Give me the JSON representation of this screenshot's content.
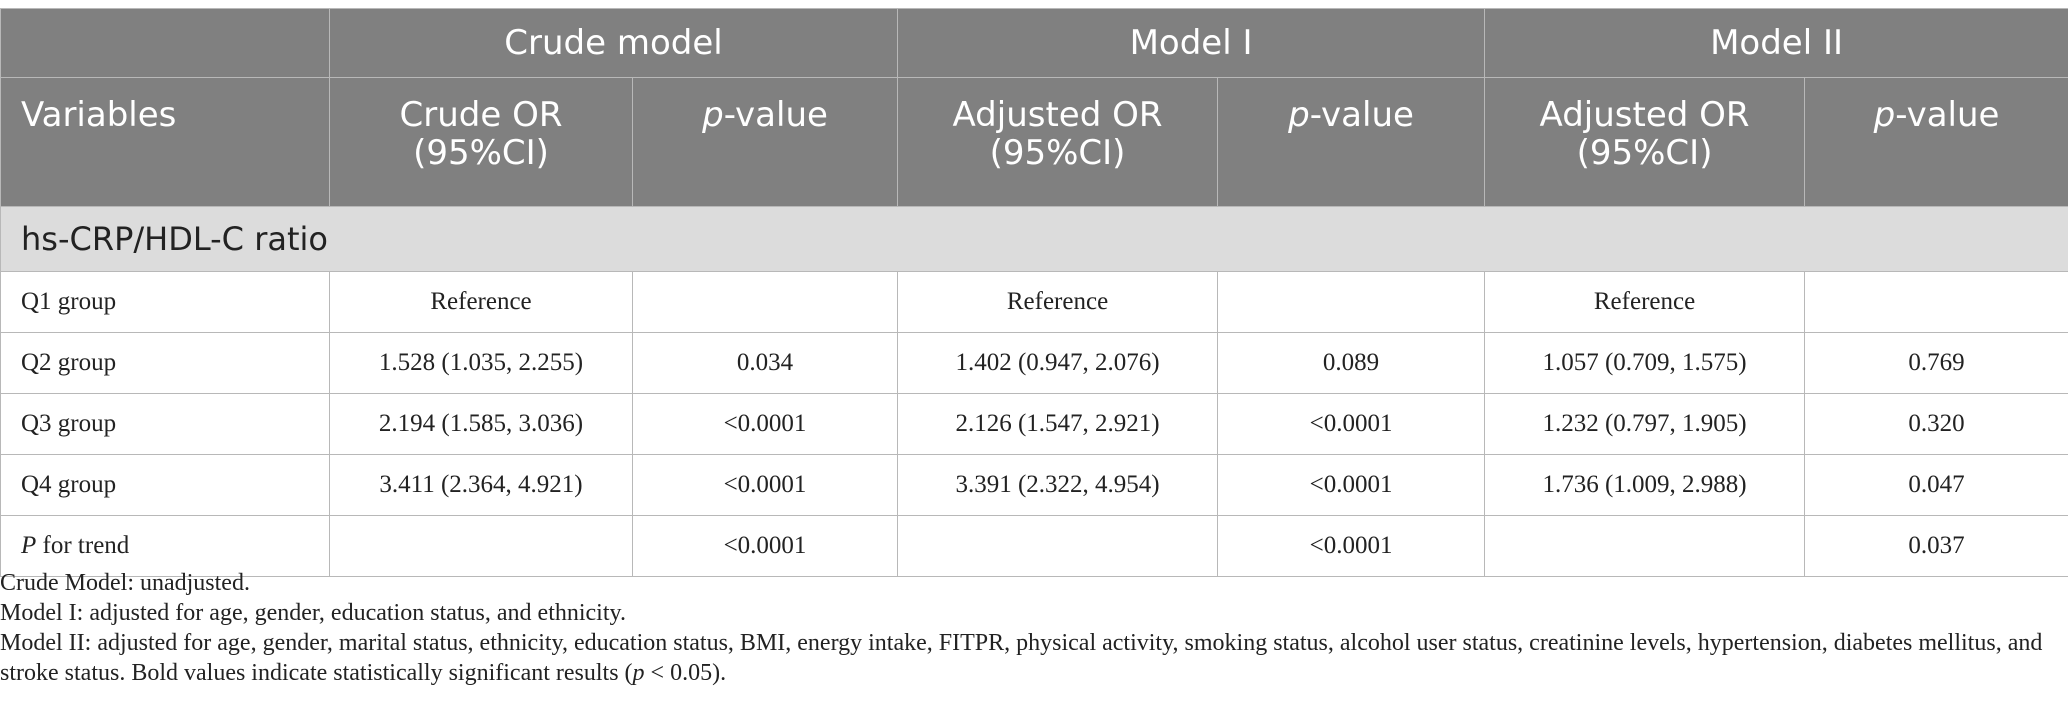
{
  "header": {
    "groups": [
      "Crude model",
      "Model I",
      "Model II"
    ],
    "variables_label": "Variables",
    "or_labels": [
      "Crude OR\n(95%CI)",
      "Adjusted OR\n(95%CI)",
      "Adjusted OR\n(95%CI)"
    ],
    "p_prefix": "p",
    "p_suffix": "-value"
  },
  "section": {
    "title": "hs-CRP/HDL-C ratio"
  },
  "rows": [
    {
      "label": "Q1 group",
      "crude_or": "Reference",
      "crude_p": "",
      "m1_or": "Reference",
      "m1_p": "",
      "m2_or": "Reference",
      "m2_p": ""
    },
    {
      "label": "Q2 group",
      "crude_or": "1.528 (1.035, 2.255)",
      "crude_p": "0.034",
      "m1_or": "1.402 (0.947, 2.076)",
      "m1_p": "0.089",
      "m2_or": "1.057 (0.709, 1.575)",
      "m2_p": "0.769"
    },
    {
      "label": "Q3 group",
      "crude_or": "2.194 (1.585, 3.036)",
      "crude_p": "<0.0001",
      "m1_or": "2.126 (1.547, 2.921)",
      "m1_p": "<0.0001",
      "m2_or": "1.232 (0.797, 1.905)",
      "m2_p": "0.320"
    },
    {
      "label": "Q4 group",
      "crude_or": "3.411 (2.364, 4.921)",
      "crude_p": "<0.0001",
      "m1_or": "3.391 (2.322, 4.954)",
      "m1_p": "<0.0001",
      "m2_or": "1.736 (1.009, 2.988)",
      "m2_p": "0.047"
    }
  ],
  "trend_row": {
    "label_italic": "P",
    "label_rest": " for trend",
    "crude_p": "<0.0001",
    "m1_p": "<0.0001",
    "m2_p": "0.037"
  },
  "notes": {
    "crude": "Crude Model: unadjusted.",
    "model1": "Model I: adjusted for age, gender, education status, and ethnicity.",
    "model2_a": "Model II: adjusted for age, gender, marital status, ethnicity, education status, BMI, energy intake, FITPR, physical activity, smoking status, alcohol user status, creatinine levels, hypertension, diabetes mellitus, and stroke status. Bold values indicate statistically significant results (",
    "model2_p": "p",
    "model2_b": " < 0.05)."
  }
}
